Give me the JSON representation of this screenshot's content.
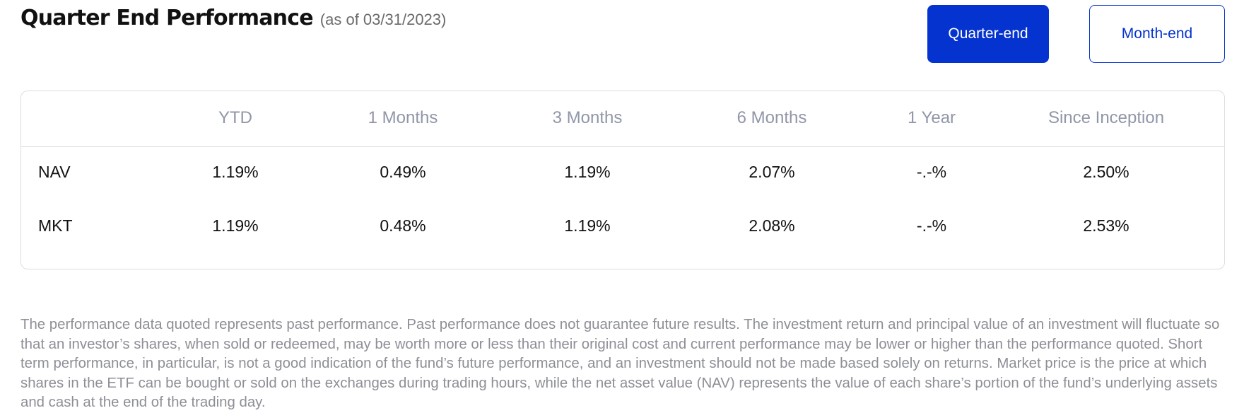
{
  "header": {
    "title": "Quarter End Performance",
    "subtitle": "(as of 03/31/2023)"
  },
  "toggle": {
    "quarter_end_label": "Quarter-end",
    "month_end_label": "Month-end",
    "selected": "Quarter-end",
    "accent_color": "#0533cf"
  },
  "table": {
    "columns": [
      "",
      "YTD",
      "1 Months",
      "3 Months",
      "6 Months",
      "1 Year",
      "Since Inception"
    ],
    "rows": [
      {
        "label": "NAV",
        "values": [
          "1.19%",
          "0.49%",
          "1.19%",
          "2.07%",
          "-.-%",
          "2.50%"
        ]
      },
      {
        "label": "MKT",
        "values": [
          "1.19%",
          "0.48%",
          "1.19%",
          "2.08%",
          "-.-%",
          "2.53%"
        ]
      }
    ]
  },
  "disclaimer": "The performance data quoted represents past performance. Past performance does not guarantee future results. The investment return and principal value of an investment will fluctuate so that an investor’s shares, when sold or redeemed, may be worth more or less than their original cost and current performance may be lower or higher than the performance quoted. Short term performance, in particular, is not a good indication of the fund’s future performance, and an investment should not be made based solely on returns. Market price is the price at which shares in the ETF can be bought or sold on the exchanges during trading hours, while the net asset value (NAV) represents the value of each share’s portion of the fund’s underlying assets and cash at the end of the trading day."
}
